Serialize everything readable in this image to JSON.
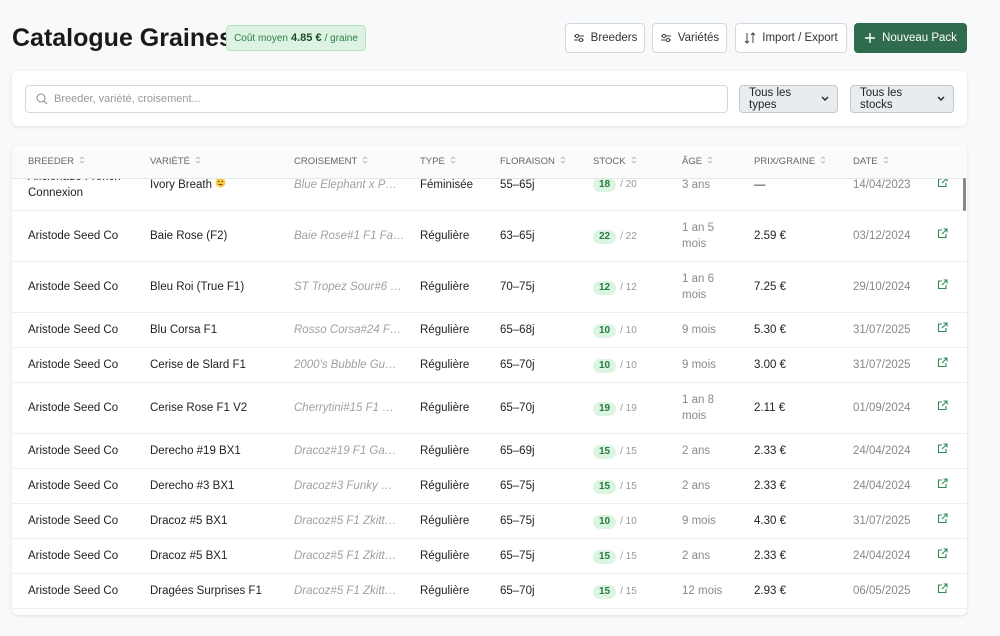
{
  "header": {
    "title": "Catalogue Graines",
    "badge": {
      "label": "Coût moyen",
      "value": "4.85 €",
      "unit": "/ graine"
    },
    "buttons": [
      "Breeders",
      "Variétés",
      "Import / Export",
      "Nouveau Pack"
    ]
  },
  "filters": {
    "search_placeholder": "Breeder, variété, croisement...",
    "selects": [
      "Tous les types",
      "Tous les stocks"
    ]
  },
  "table": {
    "columns": [
      "BREEDER",
      "VARIÉTÉ",
      "CROISEMENT",
      "TYPE",
      "FLORAISON",
      "STOCK",
      "ÂGE",
      "PRIX/GRAINE",
      "DATE"
    ],
    "rows": [
      [
        "Aficionado French Connexion",
        "Ivory Breath",
        "Blue Elephant x P…",
        "Féminisée",
        "55–65j",
        "18",
        "/ 20",
        "3 ans",
        "—",
        "14/04/2023"
      ],
      [
        "Aristode Seed Co",
        "Baie Rose (F2)",
        "Baie Rose#1 F1 Fa…",
        "Régulière",
        "63–65j",
        "22",
        "/ 22",
        "1 an 5 mois",
        "2.59 €",
        "03/12/2024"
      ],
      [
        "Aristode Seed Co",
        "Bleu Roi (True F1)",
        "ST Tropez Sour#6 …",
        "Régulière",
        "70–75j",
        "12",
        "/ 12",
        "1 an 6 mois",
        "7.25 €",
        "29/10/2024"
      ],
      [
        "Aristode Seed Co",
        "Blu Corsa F1",
        "Rosso Corsa#24 F…",
        "Régulière",
        "65–68j",
        "10",
        "/ 10",
        "9 mois",
        "5.30 €",
        "31/07/2025"
      ],
      [
        "Aristode Seed Co",
        "Cerise de Slard F1",
        "2000's Bubble Gu…",
        "Régulière",
        "65–70j",
        "10",
        "/ 10",
        "9 mois",
        "3.00 €",
        "31/07/2025"
      ],
      [
        "Aristode Seed Co",
        "Cerise Rose F1 V2",
        "Cherrytini#15 F1 …",
        "Régulière",
        "65–70j",
        "19",
        "/ 19",
        "1 an 8 mois",
        "2.11 €",
        "01/09/2024"
      ],
      [
        "Aristode Seed Co",
        "Derecho #19 BX1",
        "Dracoz#19 F1 Ga…",
        "Régulière",
        "65–69j",
        "15",
        "/ 15",
        "2 ans",
        "2.33 €",
        "24/04/2024"
      ],
      [
        "Aristode Seed Co",
        "Derecho #3 BX1",
        "Dracoz#3 Funky …",
        "Régulière",
        "65–75j",
        "15",
        "/ 15",
        "2 ans",
        "2.33 €",
        "24/04/2024"
      ],
      [
        "Aristode Seed Co",
        "Dracoz #5 BX1",
        "Dracoz#5 F1 Zkitt…",
        "Régulière",
        "65–75j",
        "10",
        "/ 10",
        "9 mois",
        "4.30 €",
        "31/07/2025"
      ],
      [
        "Aristode Seed Co",
        "Dracoz #5 BX1",
        "Dracoz#5 F1 Zkitt…",
        "Régulière",
        "65–75j",
        "15",
        "/ 15",
        "2 ans",
        "2.33 €",
        "24/04/2024"
      ],
      [
        "Aristode Seed Co",
        "Dragées Surprises F1",
        "Dracoz#5 F1 Zkitt…",
        "Régulière",
        "65–70j",
        "15",
        "/ 15",
        "12 mois",
        "2.93 €",
        "06/05/2025"
      ]
    ]
  }
}
